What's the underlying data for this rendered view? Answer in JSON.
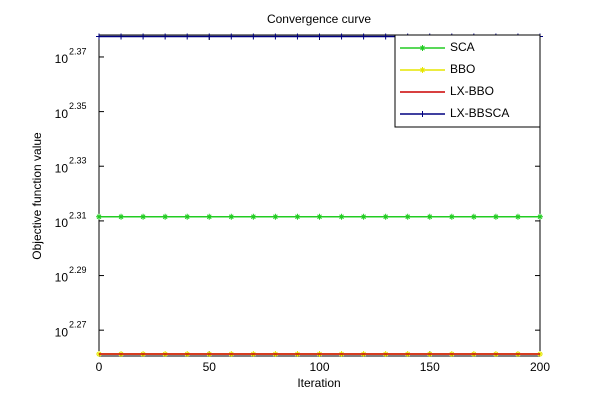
{
  "chart_data": {
    "type": "line",
    "title": "Convergence curve",
    "xlabel": "Iteration",
    "ylabel": "Objective function value",
    "x": [
      0,
      10,
      20,
      30,
      40,
      50,
      60,
      70,
      80,
      90,
      100,
      110,
      120,
      130,
      140,
      150,
      160,
      170,
      180,
      190,
      200
    ],
    "series": [
      {
        "name": "SCA",
        "color": "#22cc22",
        "marker": "*",
        "values": [
          204.88,
          204.88,
          204.88,
          204.88,
          204.88,
          204.88,
          204.88,
          204.88,
          204.88,
          204.88,
          204.88,
          204.88,
          204.88,
          204.88,
          204.88,
          204.88,
          204.88,
          204.88,
          204.88,
          204.88,
          204.88
        ]
      },
      {
        "name": "BBO",
        "color": "#e6e600",
        "marker": "*",
        "values": [
          182.5,
          182.5,
          182.5,
          182.5,
          182.5,
          182.5,
          182.5,
          182.5,
          182.5,
          182.5,
          182.5,
          182.5,
          182.5,
          182.5,
          182.5,
          182.5,
          182.5,
          182.5,
          182.5,
          182.5,
          182.5
        ]
      },
      {
        "name": "LX-BBO",
        "color": "#cc0000",
        "marker": "none",
        "values": [
          182.5,
          182.5,
          182.5,
          182.5,
          182.5,
          182.5,
          182.5,
          182.5,
          182.5,
          182.5,
          182.5,
          182.5,
          182.5,
          182.5,
          182.5,
          182.5,
          182.5,
          182.5,
          182.5,
          182.5,
          182.5
        ]
      },
      {
        "name": "LX-BBSCA",
        "color": "#000080",
        "marker": "+",
        "values": [
          238.5,
          238.5,
          238.5,
          238.5,
          238.5,
          238.5,
          238.5,
          238.5,
          238.5,
          238.5,
          238.5,
          238.5,
          238.5,
          238.5,
          238.5,
          238.5,
          238.5,
          238.5,
          238.5,
          238.5,
          238.5
        ]
      }
    ],
    "xlim": [
      0,
      200
    ],
    "xticks": [
      0,
      50,
      100,
      150,
      200
    ],
    "ylim": [
      182.2,
      238.8
    ],
    "yscale": "log",
    "yticks": [
      {
        "value": 186.21,
        "label": "10",
        "exponent": "2.27"
      },
      {
        "value": 194.98,
        "label": "10",
        "exponent": "2.29"
      },
      {
        "value": 204.17,
        "label": "10",
        "exponent": "2.31"
      },
      {
        "value": 213.8,
        "label": "10",
        "exponent": "2.33"
      },
      {
        "value": 223.87,
        "label": "10",
        "exponent": "2.35"
      },
      {
        "value": 234.42,
        "label": "10",
        "exponent": "2.37"
      }
    ],
    "legend": "top-right"
  }
}
